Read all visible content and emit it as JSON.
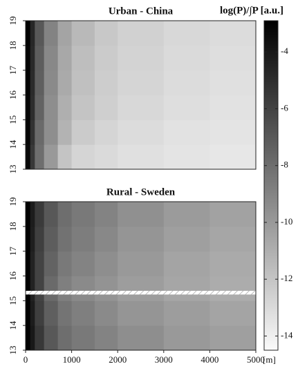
{
  "chart_data": [
    {
      "type": "heatmap",
      "title": "Urban - China",
      "x_edges": [
        0,
        100,
        200,
        400,
        700,
        1000,
        1500,
        2000,
        3000,
        4000,
        5000
      ],
      "xlim": [
        0,
        5000
      ],
      "ylim": [
        13,
        19
      ],
      "yticks": [
        13,
        14,
        15,
        16,
        17,
        18,
        19
      ],
      "z": [
        [
          -3.3,
          -5.5,
          -8,
          -10,
          -12,
          -12.8,
          -13,
          -13.3,
          -13.5,
          -13.6
        ],
        [
          -3.2,
          -5.2,
          -7.8,
          -9.5,
          -11.2,
          -12.3,
          -12.8,
          -13.1,
          -13.4,
          -13.5
        ],
        [
          -3.2,
          -5,
          -7.5,
          -9.5,
          -11,
          -12,
          -12.5,
          -12.9,
          -13.2,
          -13.4
        ],
        [
          -3.1,
          -4.9,
          -7.3,
          -9.3,
          -10.8,
          -11.8,
          -12.4,
          -12.8,
          -13.1,
          -13.3
        ],
        [
          -3.1,
          -4.8,
          -7.2,
          -9.2,
          -10.7,
          -11.7,
          -12.3,
          -12.7,
          -13,
          -13.2
        ],
        [
          -3,
          -4.7,
          -7,
          -9,
          -10.5,
          -11.5,
          -12.2,
          -12.6,
          -12.9,
          -13.1
        ]
      ]
    },
    {
      "type": "heatmap",
      "title": "Rural - Sweden",
      "x_edges": [
        0,
        100,
        200,
        400,
        700,
        1000,
        1500,
        2000,
        3000,
        4000,
        5000
      ],
      "xlim": [
        0,
        5000
      ],
      "xticks": [
        0,
        1000,
        2000,
        3000,
        4000,
        5000
      ],
      "xlabel": "[m]",
      "ylim": [
        13,
        19
      ],
      "yticks": [
        13,
        14,
        15,
        16,
        17,
        18,
        19
      ],
      "masked_band": [
        15.25,
        15.4
      ],
      "z": [
        [
          -3,
          -4,
          -5.5,
          -7,
          -8,
          -8.5,
          -9,
          -9.5,
          -10,
          -10.3
        ],
        [
          -3,
          -4.2,
          -5.8,
          -7.3,
          -8.3,
          -8.8,
          -9.3,
          -9.8,
          -10.2,
          -10.5
        ],
        [
          -3,
          -4.5,
          -6,
          -7.8,
          -8.8,
          -9.3,
          -9.7,
          -10.2,
          -10.6,
          -10.9
        ],
        [
          -3,
          -4.5,
          -6,
          -7.5,
          -8.5,
          -9,
          -9.5,
          -10,
          -10.5,
          -10.8
        ],
        [
          -3,
          -4.3,
          -5.8,
          -7.2,
          -8.2,
          -8.7,
          -9.2,
          -9.8,
          -10.3,
          -10.6
        ],
        [
          -3,
          -4.2,
          -5.6,
          -7,
          -8,
          -8.5,
          -9,
          -9.6,
          -10.1,
          -10.4
        ]
      ]
    }
  ],
  "colorbar": {
    "label": "log(P)/∫P [a.u.]",
    "zlim": [
      -14.5,
      -2.9
    ],
    "ticks": [
      -4,
      -6,
      -8,
      -10,
      -12,
      -14
    ]
  }
}
